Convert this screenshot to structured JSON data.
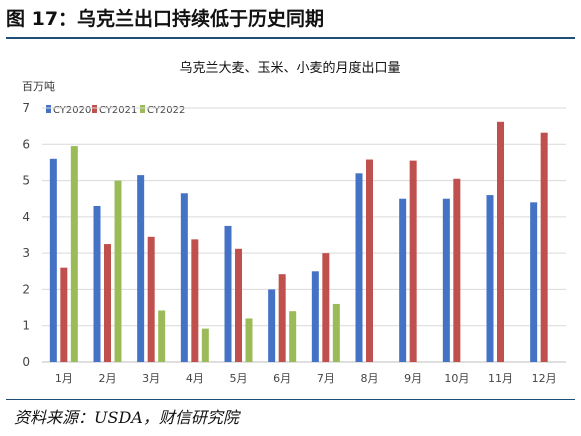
{
  "figure": {
    "title": "图 17：乌克兰出口持续低于历史同期",
    "source": "资料来源：USDA，财信研究院"
  },
  "colors": {
    "CY2020": "#4472c4",
    "CY2021": "#c0504d",
    "CY2022": "#9bbb59",
    "grid": "#d9d9d9",
    "rule": "#1f4e79"
  },
  "chart_data": {
    "type": "bar",
    "title": "乌克兰大麦、玉米、小麦的月度出口量",
    "ylabel": "百万吨",
    "xlabel": "",
    "ylim": [
      0,
      7
    ],
    "yticks": [
      0,
      1,
      2,
      3,
      4,
      5,
      6,
      7
    ],
    "grid": true,
    "legend_position": "top-left",
    "categories": [
      "1月",
      "2月",
      "3月",
      "4月",
      "5月",
      "6月",
      "7月",
      "8月",
      "9月",
      "10月",
      "11月",
      "12月"
    ],
    "series": [
      {
        "name": "CY2020",
        "values": [
          5.6,
          4.3,
          5.15,
          4.65,
          3.75,
          2.0,
          2.5,
          5.2,
          4.5,
          4.5,
          4.6,
          4.4
        ]
      },
      {
        "name": "CY2021",
        "values": [
          2.6,
          3.25,
          3.45,
          3.38,
          3.12,
          2.42,
          3.0,
          5.58,
          5.55,
          5.05,
          6.62,
          6.32
        ]
      },
      {
        "name": "CY2022",
        "values": [
          5.95,
          5.0,
          1.42,
          0.92,
          1.2,
          1.4,
          1.6,
          null,
          null,
          null,
          null,
          null
        ]
      }
    ]
  }
}
